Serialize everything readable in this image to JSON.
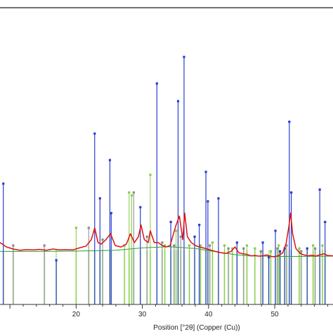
{
  "chart_data": {
    "type": "line",
    "xlabel": "Position [°2θ] (Copper (Cu))",
    "xlim": [
      8.5,
      58.8
    ],
    "ylim": [
      0,
      100
    ],
    "grid": false,
    "x_ticks": [
      20,
      30,
      40,
      50
    ],
    "baseline_value": 18.5,
    "top_rule": true,
    "colors": {
      "pattern": "#dd1111",
      "background": "#2e9d2e",
      "phase_a": "#2a3fcf",
      "phase_b": "#88cc44",
      "phase_c": "#8a8a8a",
      "reference_fill": "#b6e3a0",
      "axis": "#333333"
    },
    "phase_a_sticks": [
      [
        9.0,
        41
      ],
      [
        17.0,
        15
      ],
      [
        22.8,
        58
      ],
      [
        23.6,
        36
      ],
      [
        25.1,
        49
      ],
      [
        25.3,
        31
      ],
      [
        29.7,
        33
      ],
      [
        32.2,
        75
      ],
      [
        34.3,
        28
      ],
      [
        35.4,
        69
      ],
      [
        36.3,
        84
      ],
      [
        37.9,
        23
      ],
      [
        38.6,
        27
      ],
      [
        39.6,
        45
      ],
      [
        39.9,
        35
      ],
      [
        41.5,
        36
      ],
      [
        44.3,
        21
      ],
      [
        48.2,
        21
      ],
      [
        49.1,
        16
      ],
      [
        50.1,
        25
      ],
      [
        50.8,
        18
      ],
      [
        51.5,
        19
      ],
      [
        52.2,
        62
      ],
      [
        52.5,
        38
      ],
      [
        54.9,
        19
      ],
      [
        56.8,
        39
      ],
      [
        57.6,
        28
      ]
    ],
    "phase_b_sticks": [
      [
        20.0,
        26
      ],
      [
        27.3,
        20
      ],
      [
        28.0,
        38
      ],
      [
        28.4,
        37
      ],
      [
        31.2,
        44
      ],
      [
        33.4,
        20
      ],
      [
        35.1,
        25
      ],
      [
        37.1,
        20
      ],
      [
        38.8,
        20
      ],
      [
        40.6,
        21
      ],
      [
        42.4,
        20
      ],
      [
        43.6,
        19
      ],
      [
        45.8,
        20
      ],
      [
        47.0,
        19
      ],
      [
        49.4,
        18
      ],
      [
        50.6,
        20
      ],
      [
        53.7,
        19
      ],
      [
        55.8,
        20
      ],
      [
        57.2,
        20
      ]
    ],
    "phase_c_sticks": [
      [
        10.5,
        20
      ],
      [
        15.2,
        20
      ],
      [
        21.9,
        26
      ],
      [
        24.0,
        22
      ],
      [
        28.7,
        38
      ],
      [
        30.7,
        23
      ],
      [
        33.0,
        21
      ],
      [
        34.8,
        20
      ],
      [
        35.8,
        23
      ],
      [
        40.2,
        20
      ],
      [
        43.0,
        19
      ],
      [
        45.3,
        19
      ],
      [
        47.9,
        18
      ],
      [
        50.4,
        19
      ],
      [
        51.8,
        20
      ],
      [
        54.0,
        18
      ],
      [
        56.1,
        19
      ]
    ],
    "series": [
      {
        "x": [
          8.5,
          9.5,
          10.5,
          11.5,
          12.5,
          13.5,
          14.5,
          15.5,
          16.5,
          17.5,
          18.5,
          19.5,
          20.5,
          21.5,
          22.3,
          22.8,
          23.3,
          23.8,
          24.5,
          25.2,
          25.9,
          26.8,
          27.6,
          28.2,
          28.8,
          29.4,
          29.8,
          30.3,
          30.9,
          31.2,
          31.8,
          32.4,
          33.0,
          33.6,
          34.2,
          34.7,
          35.1,
          35.6,
          36.1,
          36.4,
          36.8,
          37.4,
          38.0,
          38.6,
          39.2,
          39.8,
          40.4,
          41.0,
          41.8,
          42.6,
          43.4,
          44.0,
          44.6,
          45.2,
          45.8,
          46.4,
          47.0,
          47.6,
          48.2,
          48.8,
          49.4,
          50.0,
          50.6,
          51.2,
          51.7,
          52.1,
          52.4,
          52.7,
          53.2,
          53.8,
          54.4,
          55.0,
          55.6,
          56.2,
          56.8,
          57.4,
          58.0,
          58.8
        ],
        "y": [
          21,
          19.5,
          18.8,
          18.4,
          18.6,
          18.5,
          18.7,
          18.4,
          18.8,
          18.5,
          18.6,
          18.5,
          19.2,
          19.8,
          22,
          26,
          21,
          20.5,
          22,
          24,
          20,
          19.5,
          20.5,
          24,
          21,
          23,
          27,
          22,
          21,
          25,
          21,
          21,
          20,
          19.5,
          20,
          24,
          27,
          30,
          22,
          31,
          23,
          21,
          20,
          19.5,
          19.2,
          18.8,
          18.4,
          18,
          17.6,
          17.3,
          18,
          19.5,
          17.5,
          17.2,
          17,
          16.5,
          16.6,
          16.4,
          16.5,
          16.8,
          16.3,
          16.2,
          16.6,
          17.5,
          20.5,
          26,
          31,
          24,
          19,
          17.4,
          16.8,
          16.5,
          16.7,
          16.4,
          16.8,
          17.2,
          16.6,
          16.5
        ]
      },
      {
        "x": [
          8.5,
          14,
          20,
          26,
          30,
          34,
          38,
          42,
          44,
          46,
          50,
          54,
          58.8
        ],
        "y": [
          18.0,
          18.0,
          18.1,
          18.4,
          19.2,
          19.6,
          19.0,
          17.6,
          16.9,
          16.5,
          16.3,
          16.3,
          16.4
        ]
      }
    ]
  }
}
